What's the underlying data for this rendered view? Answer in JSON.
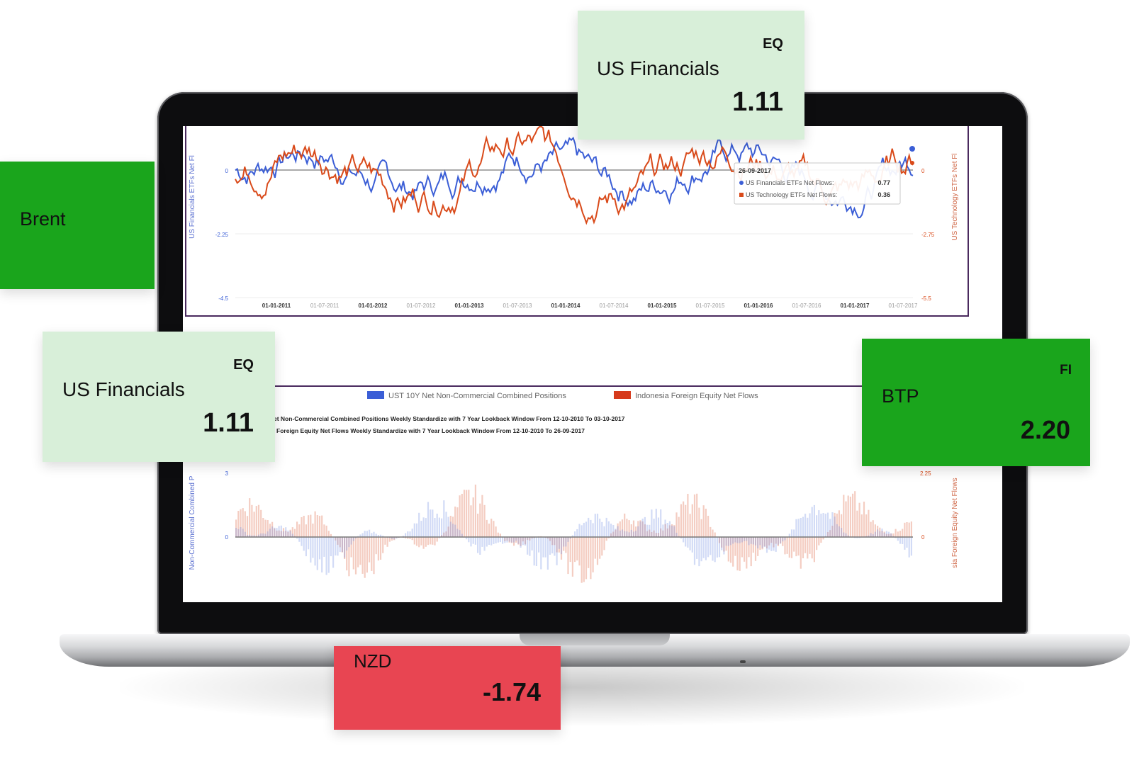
{
  "tiles": {
    "top": {
      "name": "US Financials",
      "tag": "EQ",
      "value": "1.11",
      "color": "#d8efd9"
    },
    "brent": {
      "name": "Brent",
      "color": "#1aa51c"
    },
    "left": {
      "name": "US Financials",
      "tag": "EQ",
      "value": "1.11",
      "color": "#d8efd9"
    },
    "btp": {
      "name": "BTP",
      "tag": "FI",
      "value": "2.20",
      "color": "#1aa51c"
    },
    "nzd": {
      "name": "NZD",
      "value": "-1.74",
      "color": "#e84552"
    }
  },
  "chart_top": {
    "left_axis_label": "US Financials ETFs Net Fl",
    "right_axis_label": "US Technology ETFs Net Fl",
    "left_ticks": [
      "0",
      "-2.25",
      "-4.5"
    ],
    "right_ticks": [
      "0",
      "-2.75",
      "-5.5"
    ],
    "x_ticks": [
      "01-01-2011",
      "01-07-2011",
      "01-01-2012",
      "01-07-2012",
      "01-01-2013",
      "01-07-2013",
      "01-01-2014",
      "01-07-2014",
      "01-01-2015",
      "01-07-2015",
      "01-01-2016",
      "01-07-2016",
      "01-01-2017",
      "01-07-2017"
    ],
    "tooltip": {
      "date": "26-09-2017",
      "rows": [
        {
          "label": "US Financials ETFs Net Flows:",
          "value": "0.77",
          "color": "#3b5ed6"
        },
        {
          "label": "US Technology ETFs Net Flows:",
          "value": "0.36",
          "color": "#d94a1a"
        }
      ]
    }
  },
  "chart_bottom": {
    "legend": [
      {
        "label": "UST 10Y Net Non-Commercial Combined Positions",
        "color": "#3b5ed6"
      },
      {
        "label": "Indonesia Foreign Equity Net Flows",
        "color": "#d63a1c"
      }
    ],
    "subtitle_1": "et Non-Commercial Combined Positions Weekly Standardize with 7 Year Lookback Window From 12-10-2010 To 03-10-2017",
    "subtitle_2": "Foreign Equity Net Flows Weekly Standardize with 7 Year Lookback Window From 12-10-2010 To 26-09-2017",
    "left_axis_label": "Non-Commercial Combined P",
    "right_axis_label": "sia Foreign Equity Net Flows",
    "left_ticks": [
      "3",
      "0"
    ],
    "right_ticks": [
      "2.25",
      "0"
    ]
  },
  "colors": {
    "blue": "#3b5ed6",
    "orange": "#d94a1a",
    "frame": "#4a2a5e"
  }
}
